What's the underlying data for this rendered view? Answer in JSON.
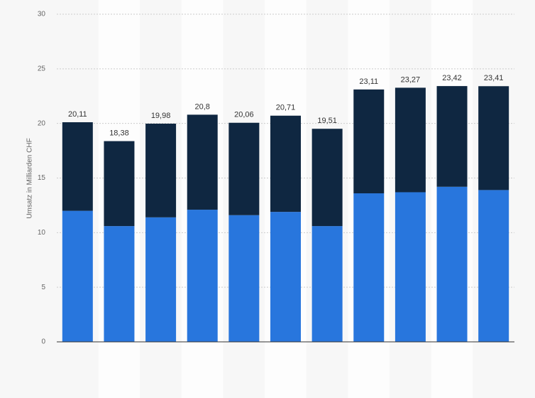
{
  "chart_data": {
    "type": "stacked_bar",
    "y_axis_label": "Umsatz in Milliarden CHF",
    "categories": [
      null,
      null,
      null,
      null,
      null,
      null,
      null,
      null,
      null,
      null,
      null
    ],
    "series": [
      {
        "color": "#2876dd",
        "values": [
          12.0,
          10.6,
          11.4,
          12.1,
          11.6,
          11.9,
          10.6,
          13.6,
          13.7,
          14.2,
          13.9
        ]
      },
      {
        "color": "#0f2741",
        "values": [
          8.11,
          7.78,
          8.58,
          8.7,
          8.46,
          8.81,
          8.91,
          9.51,
          9.57,
          9.22,
          9.51
        ]
      }
    ],
    "totals": [
      20.11,
      18.38,
      19.98,
      20.8,
      20.06,
      20.71,
      19.51,
      23.11,
      23.27,
      23.42,
      23.41
    ],
    "total_labels": [
      "20,11",
      "18,38",
      "19,98",
      "20,8",
      "20,06",
      "20,71",
      "19,51",
      "23,11",
      "23,27",
      "23,42",
      "23,41"
    ],
    "ylim": [
      0,
      30
    ],
    "yticks": [
      0,
      5,
      10,
      15,
      20,
      25,
      30
    ],
    "grid": true
  }
}
